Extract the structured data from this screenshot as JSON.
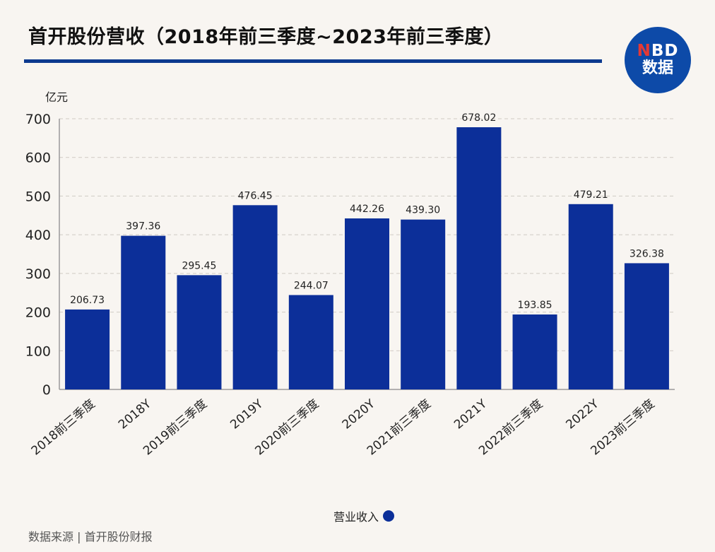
{
  "title": "首开股份营收（2018年前三季度~2023年前三季度）",
  "logo": {
    "top_n": "N",
    "top_rest": "BD",
    "bottom": "数据"
  },
  "source": "数据来源 | 首开股份财报",
  "colors": {
    "bar": "#0c2f99",
    "rule": "#0d3a8f",
    "logo_bg": "#0d4aa8",
    "logo_n": "#e53935"
  },
  "chart_data": {
    "type": "bar",
    "title": "首开股份营收（2018年前三季度~2023年前三季度）",
    "ylabel": "亿元",
    "xlabel": "",
    "ylim": [
      0,
      700
    ],
    "yticks": [
      0,
      100,
      200,
      300,
      400,
      500,
      600,
      700
    ],
    "grid": true,
    "legend": [
      "营业收入"
    ],
    "legend_position": "bottom-center",
    "categories": [
      "2018前三季度",
      "2018Y",
      "2019前三季度",
      "2019Y",
      "2020前三季度",
      "2020Y",
      "2021前三季度",
      "2021Y",
      "2022前三季度",
      "2022Y",
      "2023前三季度"
    ],
    "series": [
      {
        "name": "营业收入",
        "values": [
          206.73,
          397.36,
          295.45,
          476.45,
          244.07,
          442.26,
          439.3,
          678.02,
          193.85,
          479.21,
          326.38
        ]
      }
    ],
    "data_labels": [
      "206.73",
      "397.36",
      "295.45",
      "476.45",
      "244.07",
      "442.26",
      "439.30",
      "678.02",
      "193.85",
      "479.21",
      "326.38"
    ]
  }
}
